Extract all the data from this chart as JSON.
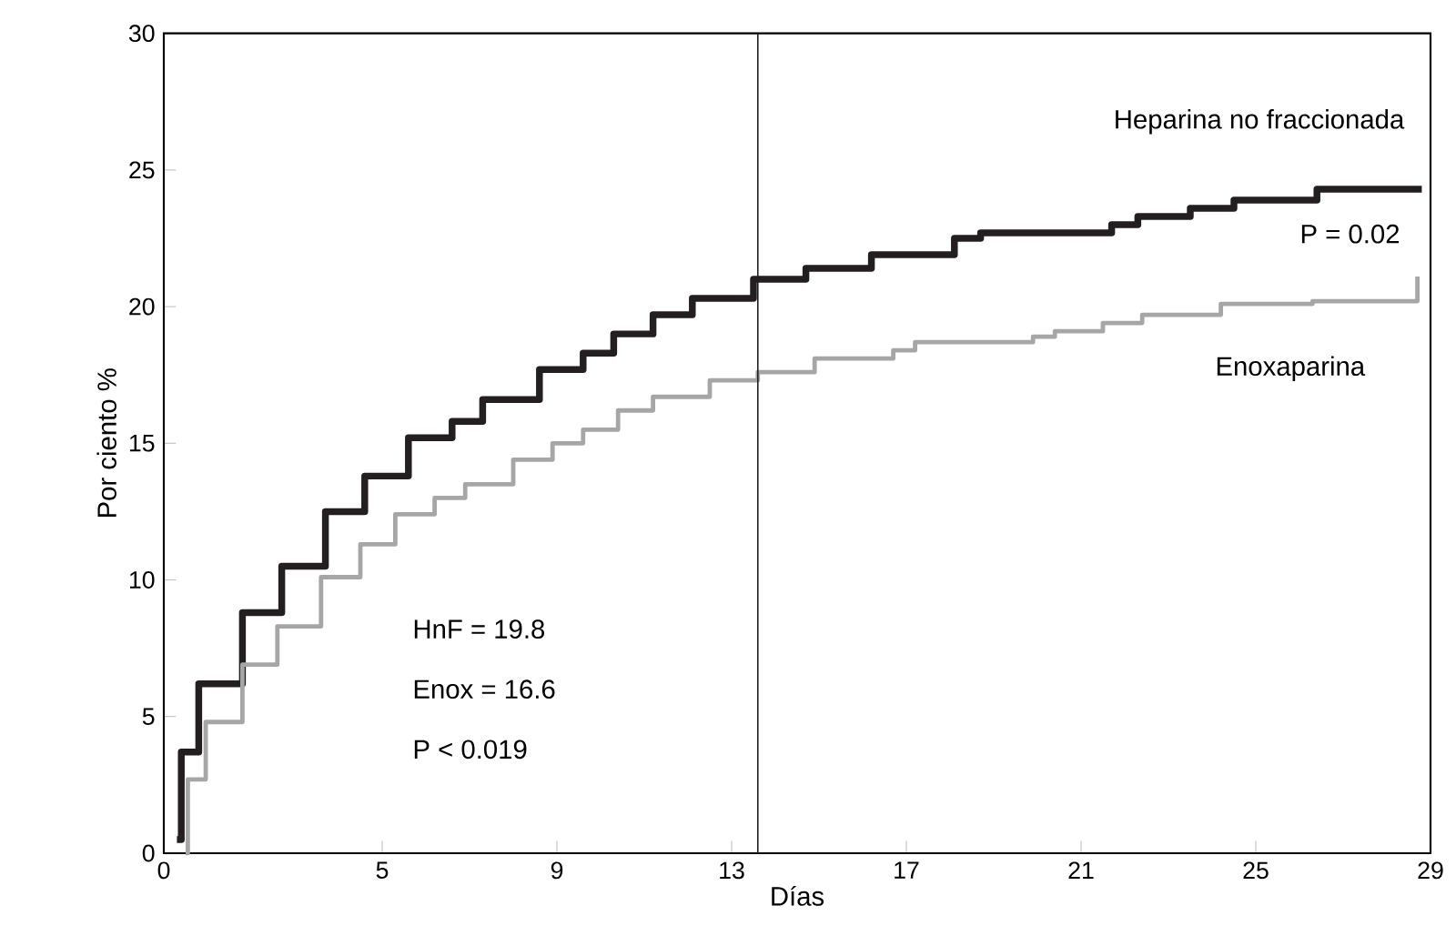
{
  "chart_data": {
    "type": "step",
    "xlabel": "Días",
    "ylabel": "Por ciento %",
    "xlim": [
      0,
      29
    ],
    "xticks": [
      0,
      5,
      9,
      13,
      17,
      21,
      25,
      29
    ],
    "ylim": [
      0,
      30
    ],
    "yticks": [
      0,
      5,
      10,
      15,
      20,
      25,
      30
    ],
    "series": [
      {
        "name": "Heparina no fraccionada",
        "color": "#231f20",
        "x": [
          0.3,
          0.4,
          0.8,
          1.8,
          2.7,
          3.7,
          4.6,
          5.6,
          6.6,
          7.3,
          8.6,
          9.6,
          10.3,
          11.2,
          12.1,
          13.5,
          14.7,
          16.2,
          18.1,
          18.7,
          21.7,
          22.3,
          23.5,
          24.5,
          26.4,
          28.8
        ],
        "values": [
          0.5,
          3.7,
          6.2,
          8.8,
          10.5,
          12.5,
          13.8,
          15.2,
          15.8,
          16.6,
          17.7,
          18.3,
          19.0,
          19.7,
          20.3,
          21.0,
          21.4,
          21.9,
          22.5,
          22.7,
          23.0,
          23.3,
          23.6,
          23.9,
          24.3,
          24.3
        ]
      },
      {
        "name": "Enoxaparina",
        "color": "#a6a6a6",
        "x": [
          0.5,
          0.55,
          0.96,
          1.8,
          2.6,
          3.6,
          4.5,
          5.3,
          6.2,
          6.9,
          8.0,
          8.9,
          9.6,
          10.4,
          11.2,
          12.5,
          13.6,
          14.9,
          16.7,
          17.2,
          19.9,
          20.4,
          21.5,
          22.4,
          24.2,
          26.3,
          28.7
        ],
        "values": [
          0,
          2.7,
          4.8,
          6.9,
          8.3,
          10.1,
          11.3,
          12.4,
          13.0,
          13.5,
          14.4,
          15.0,
          15.5,
          16.2,
          16.7,
          17.3,
          17.6,
          18.1,
          18.4,
          18.7,
          18.9,
          19.1,
          19.4,
          19.7,
          20.1,
          20.2,
          21.1
        ]
      }
    ],
    "ref_lines": [
      {
        "axis": "x",
        "value": 13.6,
        "color": "#231f20"
      }
    ],
    "annotations": [
      "P = 0.02",
      "HnF = 19.8",
      "Enox = 16.6",
      "P < 0.019"
    ],
    "grid": false,
    "legend": false,
    "marker": "none",
    "line_style": "solid"
  }
}
